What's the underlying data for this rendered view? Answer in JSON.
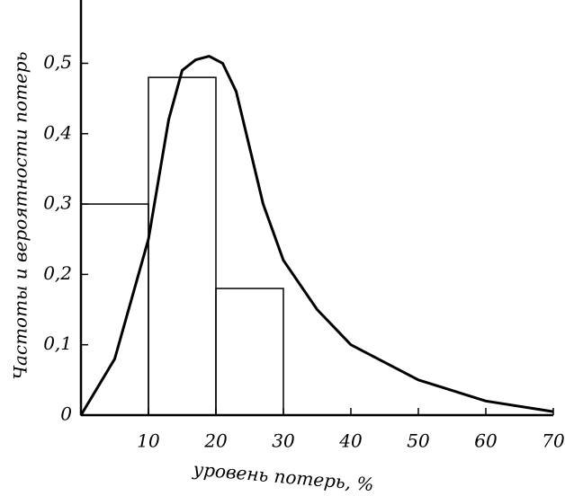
{
  "chart_data": {
    "type": "histogram",
    "xlabel": "уровень потерь, %",
    "ylabel": "Частоты и вероятности потерь",
    "bins": [
      0,
      10,
      20,
      30
    ],
    "counts": [
      0.3,
      0.48,
      0.18
    ],
    "curve": {
      "x": [
        0,
        5,
        10,
        13,
        15,
        17,
        19,
        21,
        23,
        25,
        27,
        30,
        35,
        40,
        50,
        60,
        70
      ],
      "y": [
        0,
        0.08,
        0.25,
        0.42,
        0.49,
        0.505,
        0.51,
        0.5,
        0.46,
        0.38,
        0.3,
        0.22,
        0.15,
        0.1,
        0.05,
        0.02,
        0.005
      ]
    },
    "color": "#000000",
    "xlim": [
      0,
      70
    ],
    "ylim": [
      0,
      0.59
    ],
    "xticks": [
      10,
      20,
      30,
      40,
      50,
      60,
      70
    ],
    "yticks": [
      0,
      {
        "value": 0.1,
        "label": "0,1"
      },
      {
        "value": 0.2,
        "label": "0,2"
      },
      {
        "value": 0.3,
        "label": "0,3"
      },
      {
        "value": 0.4,
        "label": "0,4"
      },
      {
        "value": 0.5,
        "label": "0,5"
      }
    ]
  }
}
